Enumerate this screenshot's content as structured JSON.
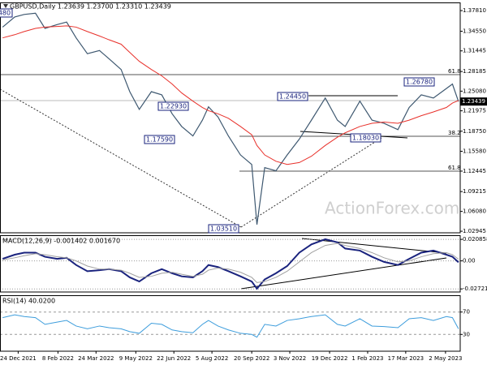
{
  "chart_data": [
    {
      "type": "line",
      "title": "GBPUSD,Daily  1.23639 1.23700 1.23310 1.23439",
      "x": [
        "2021-12-06",
        "2021-12-20",
        "2021-12-31",
        "2022-01-13",
        "2022-01-24",
        "2022-02-07",
        "2022-02-18",
        "2022-03-01",
        "2022-03-14",
        "2022-03-28",
        "2022-04-08",
        "2022-04-22",
        "2022-05-02",
        "2022-05-13",
        "2022-05-27",
        "2022-06-08",
        "2022-06-20",
        "2022-07-01",
        "2022-07-14",
        "2022-07-25",
        "2022-08-01",
        "2022-08-12",
        "2022-08-24",
        "2022-09-07",
        "2022-09-20",
        "2022-09-26",
        "2022-10-05",
        "2022-10-18",
        "2022-10-31",
        "2022-11-14",
        "2022-11-28",
        "2022-12-14",
        "2022-12-28",
        "2023-01-06",
        "2023-01-23",
        "2023-02-06",
        "2023-02-20",
        "2023-03-08",
        "2023-03-21",
        "2023-04-04",
        "2023-04-18",
        "2023-05-03",
        "2023-05-10",
        "2023-05-17"
      ],
      "xlim": [
        "2021-12-03",
        "2023-05-19"
      ],
      "xticks": [
        {
          "value": "2021-12-24",
          "label": "24 Dec 2021"
        },
        {
          "value": "2022-02-08",
          "label": "8 Feb 2022"
        },
        {
          "value": "2022-03-24",
          "label": "24 Mar 2022"
        },
        {
          "value": "2022-05-09",
          "label": "9 May 2022"
        },
        {
          "value": "2022-06-22",
          "label": "22 Jun 2022"
        },
        {
          "value": "2022-08-05",
          "label": "5 Aug 2022"
        },
        {
          "value": "2022-09-20",
          "label": "20 Sep 2022"
        },
        {
          "value": "2022-11-03",
          "label": "3 Nov 2022"
        },
        {
          "value": "2022-12-19",
          "label": "19 Dec 2022"
        },
        {
          "value": "2023-02-01",
          "label": "1 Feb 2023"
        },
        {
          "value": "2023-03-17",
          "label": "17 Mar 2023"
        },
        {
          "value": "2023-05-02",
          "label": "2 May 2023"
        }
      ],
      "series": [
        {
          "name": "GBPUSD",
          "color": "#3e5870",
          "values": [
            1.352,
            1.368,
            1.372,
            1.374,
            1.35,
            1.356,
            1.36,
            1.335,
            1.31,
            1.315,
            1.302,
            1.285,
            1.25,
            1.222,
            1.25,
            1.245,
            1.215,
            1.195,
            1.18,
            1.205,
            1.226,
            1.21,
            1.18,
            1.15,
            1.135,
            1.04,
            1.13,
            1.125,
            1.15,
            1.175,
            1.205,
            1.24,
            1.205,
            1.195,
            1.235,
            1.205,
            1.2,
            1.19,
            1.225,
            1.245,
            1.24,
            1.255,
            1.262,
            1.23439
          ]
        },
        {
          "name": "MA",
          "color": "#e8302a",
          "values": [
            1.335,
            1.34,
            1.345,
            1.35,
            1.352,
            1.353,
            1.354,
            1.352,
            1.345,
            1.338,
            1.332,
            1.325,
            1.312,
            1.298,
            1.285,
            1.275,
            1.262,
            1.248,
            1.235,
            1.225,
            1.22,
            1.215,
            1.208,
            1.195,
            1.182,
            1.165,
            1.15,
            1.14,
            1.135,
            1.138,
            1.148,
            1.165,
            1.178,
            1.185,
            1.195,
            1.2,
            1.202,
            1.2,
            1.205,
            1.212,
            1.218,
            1.225,
            1.232,
            1.236
          ]
        }
      ],
      "ylim": [
        1.027,
        1.391
      ],
      "yticks": [
        {
          "value": 1.3781,
          "label": "1.37810"
        },
        {
          "value": 1.3455,
          "label": "1.34550"
        },
        1.31445,
        1.28185,
        {
          "value": 1.2508,
          "label": "1.25080"
        },
        1.21975,
        {
          "value": 1.1875,
          "label": "1.18750"
        },
        {
          "value": 1.1558,
          "label": "1.15580"
        },
        1.12445,
        1.09215,
        {
          "value": 1.0608,
          "label": "1.06080"
        },
        1.02945
      ],
      "annotations": [
        "1.37480",
        "1.22930",
        "1.17590",
        "1.24450",
        "1.26780",
        "1.18030",
        "1.03510"
      ],
      "fib_labels": [
        "61.8",
        "38.2",
        "61.8"
      ],
      "watermark": "ActionForex.com"
    },
    {
      "type": "line",
      "title": "MACD(12,26,9) -0.001402 0.001670",
      "series": [
        {
          "name": "MACD",
          "color": "#1a237e",
          "values": [
            0.002,
            0.006,
            0.008,
            0.008,
            0.004,
            0.002,
            0.003,
            -0.004,
            -0.01,
            -0.009,
            -0.008,
            -0.01,
            -0.016,
            -0.02,
            -0.012,
            -0.008,
            -0.012,
            -0.015,
            -0.016,
            -0.01,
            -0.004,
            -0.006,
            -0.01,
            -0.015,
            -0.02,
            -0.027,
            -0.018,
            -0.012,
            -0.005,
            0.008,
            0.016,
            0.021,
            0.018,
            0.012,
            0.01,
            0.004,
            -0.001,
            -0.004,
            0.002,
            0.008,
            0.01,
            0.006,
            0.004,
            -0.001402
          ]
        },
        {
          "name": "Signal",
          "color": "#a0a0a0",
          "values": [
            0.001,
            0.003,
            0.005,
            0.007,
            0.006,
            0.004,
            0.003,
            0,
            -0.005,
            -0.008,
            -0.008,
            -0.009,
            -0.012,
            -0.016,
            -0.015,
            -0.012,
            -0.011,
            -0.013,
            -0.015,
            -0.013,
            -0.009,
            -0.007,
            -0.008,
            -0.011,
            -0.016,
            -0.021,
            -0.02,
            -0.016,
            -0.01,
            -0.001,
            0.008,
            0.015,
            0.017,
            0.015,
            0.012,
            0.008,
            0.003,
            -0.001,
            0,
            0.004,
            0.007,
            0.008,
            0.006,
            0.00167
          ]
        }
      ],
      "ylim": [
        -0.0302,
        0.0249
      ],
      "yticks": [
        0.020858,
        {
          "value": 0,
          "label": "0.00"
        },
        -0.027213
      ],
      "grid": "dotted"
    },
    {
      "type": "line",
      "title": "RSI(14) 40.0200",
      "series": [
        {
          "name": "RSI",
          "color": "#3d9ddc",
          "values": [
            60,
            65,
            62,
            60,
            48,
            52,
            55,
            45,
            40,
            45,
            42,
            40,
            35,
            32,
            50,
            48,
            38,
            35,
            33,
            48,
            55,
            45,
            38,
            32,
            30,
            25,
            48,
            45,
            55,
            58,
            62,
            65,
            48,
            45,
            58,
            45,
            44,
            42,
            58,
            60,
            55,
            62,
            60,
            40.02
          ]
        }
      ],
      "ylim": [
        0,
        100
      ],
      "yticks": [
        70,
        30
      ],
      "grid": "dashed"
    }
  ]
}
